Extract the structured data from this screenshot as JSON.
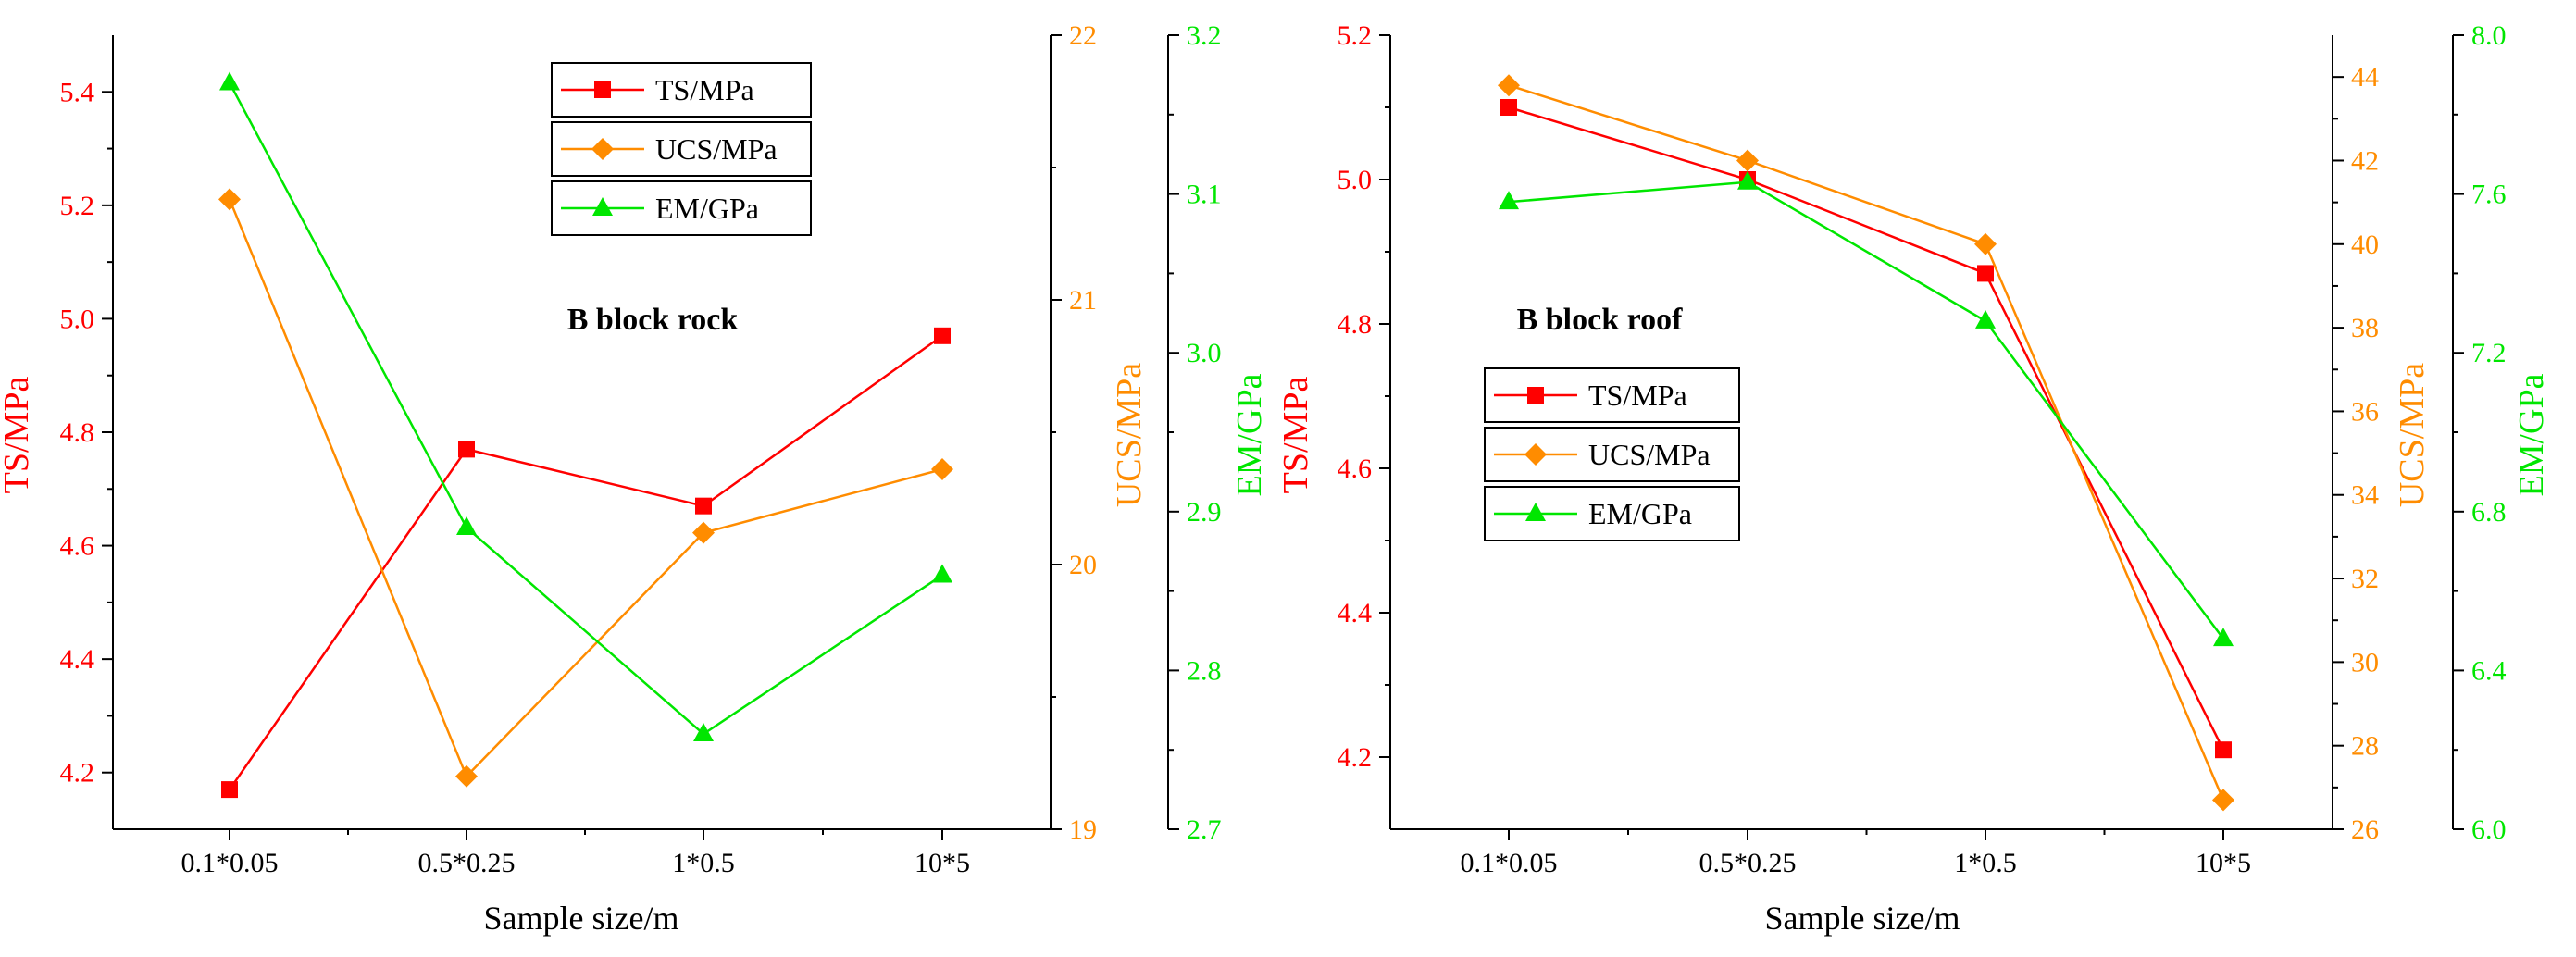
{
  "colors": {
    "ts": "#ff0000",
    "ucs": "#ff8c00",
    "em": "#00e600",
    "axis": "#000000"
  },
  "chart_data": [
    {
      "type": "line",
      "title": "B block rock",
      "xlabel": "Sample size/m",
      "categories": [
        "0.1*0.05",
        "0.5*0.25",
        "1*0.5",
        "10*5"
      ],
      "axes": [
        {
          "id": "ts",
          "label": "TS/MPa",
          "side": "left",
          "ylim": [
            4.1,
            5.5
          ],
          "ticks": [
            4.2,
            4.4,
            4.6,
            4.8,
            5.0,
            5.2,
            5.4
          ],
          "tick_labels": [
            "4.2",
            "4.4",
            "4.6",
            "4.8",
            "5.0",
            "5.2",
            "5.4"
          ]
        },
        {
          "id": "ucs",
          "label": "UCS/MPa",
          "side": "right",
          "ylim": [
            19,
            22
          ],
          "ticks": [
            19,
            20,
            21,
            22
          ],
          "tick_labels": [
            "19",
            "20",
            "21",
            "22"
          ]
        },
        {
          "id": "em",
          "label": "EM/GPa",
          "side": "right-outer",
          "ylim": [
            2.7,
            3.2
          ],
          "ticks": [
            2.7,
            2.8,
            2.9,
            3.0,
            3.1,
            3.2
          ],
          "tick_labels": [
            "2.7",
            "2.8",
            "2.9",
            "3.0",
            "3.1",
            "3.2"
          ]
        }
      ],
      "series": [
        {
          "name": "TS/MPa",
          "axis": "ts",
          "marker": "square",
          "color_key": "ts",
          "values": [
            4.17,
            4.77,
            4.67,
            4.97
          ]
        },
        {
          "name": "UCS/MPa",
          "axis": "ucs",
          "marker": "diamond",
          "color_key": "ucs",
          "values": [
            21.38,
            19.2,
            20.12,
            20.36
          ]
        },
        {
          "name": "EM/GPa",
          "axis": "em",
          "marker": "triangle",
          "color_key": "em",
          "values": [
            3.17,
            2.89,
            2.76,
            2.86
          ]
        }
      ],
      "legend_position": "top-center"
    },
    {
      "type": "line",
      "title": "B block roof",
      "xlabel": "Sample size/m",
      "categories": [
        "0.1*0.05",
        "0.5*0.25",
        "1*0.5",
        "10*5"
      ],
      "axes": [
        {
          "id": "ts",
          "label": "TS/MPa",
          "side": "left",
          "ylim": [
            4.1,
            5.2
          ],
          "ticks": [
            4.2,
            4.4,
            4.6,
            4.8,
            5.0,
            5.2
          ],
          "tick_labels": [
            "4.2",
            "4.4",
            "4.6",
            "4.8",
            "5.0",
            "5.2"
          ]
        },
        {
          "id": "ucs",
          "label": "UCS/MPa",
          "side": "right",
          "ylim": [
            26,
            45
          ],
          "ticks": [
            26,
            28,
            30,
            32,
            34,
            36,
            38,
            40,
            42,
            44
          ],
          "tick_labels": [
            "26",
            "28",
            "30",
            "32",
            "34",
            "36",
            "38",
            "40",
            "42",
            "44"
          ]
        },
        {
          "id": "em",
          "label": "EM/GPa",
          "side": "right-outer",
          "ylim": [
            6.0,
            8.0
          ],
          "ticks": [
            6.0,
            6.4,
            6.8,
            7.2,
            7.6,
            8.0
          ],
          "tick_labels": [
            "6.0",
            "6.4",
            "6.8",
            "7.2",
            "7.6",
            "8.0"
          ]
        }
      ],
      "series": [
        {
          "name": "TS/MPa",
          "axis": "ts",
          "marker": "square",
          "color_key": "ts",
          "values": [
            5.1,
            5.0,
            4.87,
            4.21
          ]
        },
        {
          "name": "UCS/MPa",
          "axis": "ucs",
          "marker": "diamond",
          "color_key": "ucs",
          "values": [
            43.8,
            42.0,
            40.0,
            26.7
          ]
        },
        {
          "name": "EM/GPa",
          "axis": "em",
          "marker": "triangle",
          "color_key": "em",
          "values": [
            7.58,
            7.63,
            7.28,
            6.48
          ]
        }
      ],
      "legend_position": "middle-left"
    }
  ]
}
